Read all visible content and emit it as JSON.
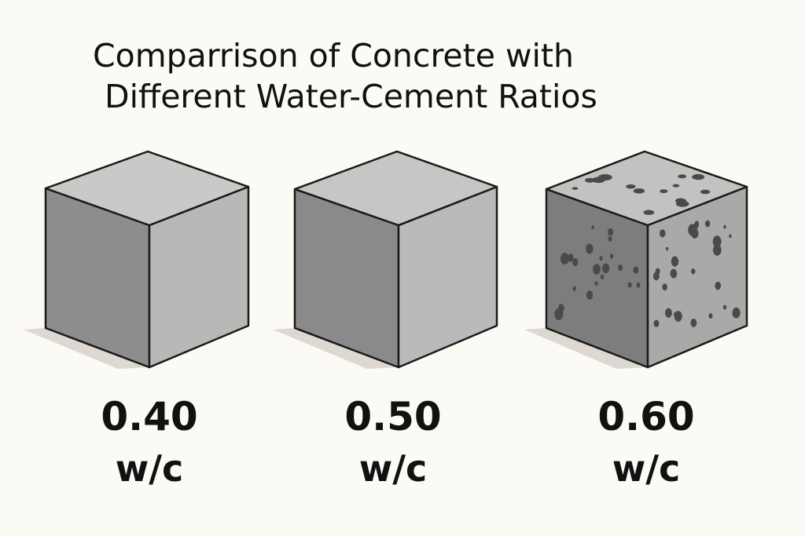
{
  "title": [
    "Comparrison of Concrete with",
    "Different Water-Cement Ratios"
  ],
  "cubes": [
    {
      "ratio": "0.40",
      "unit": "w/c"
    },
    {
      "ratio": "0.50",
      "unit": "w/c"
    },
    {
      "ratio": "0.60",
      "unit": "w/c"
    }
  ]
}
